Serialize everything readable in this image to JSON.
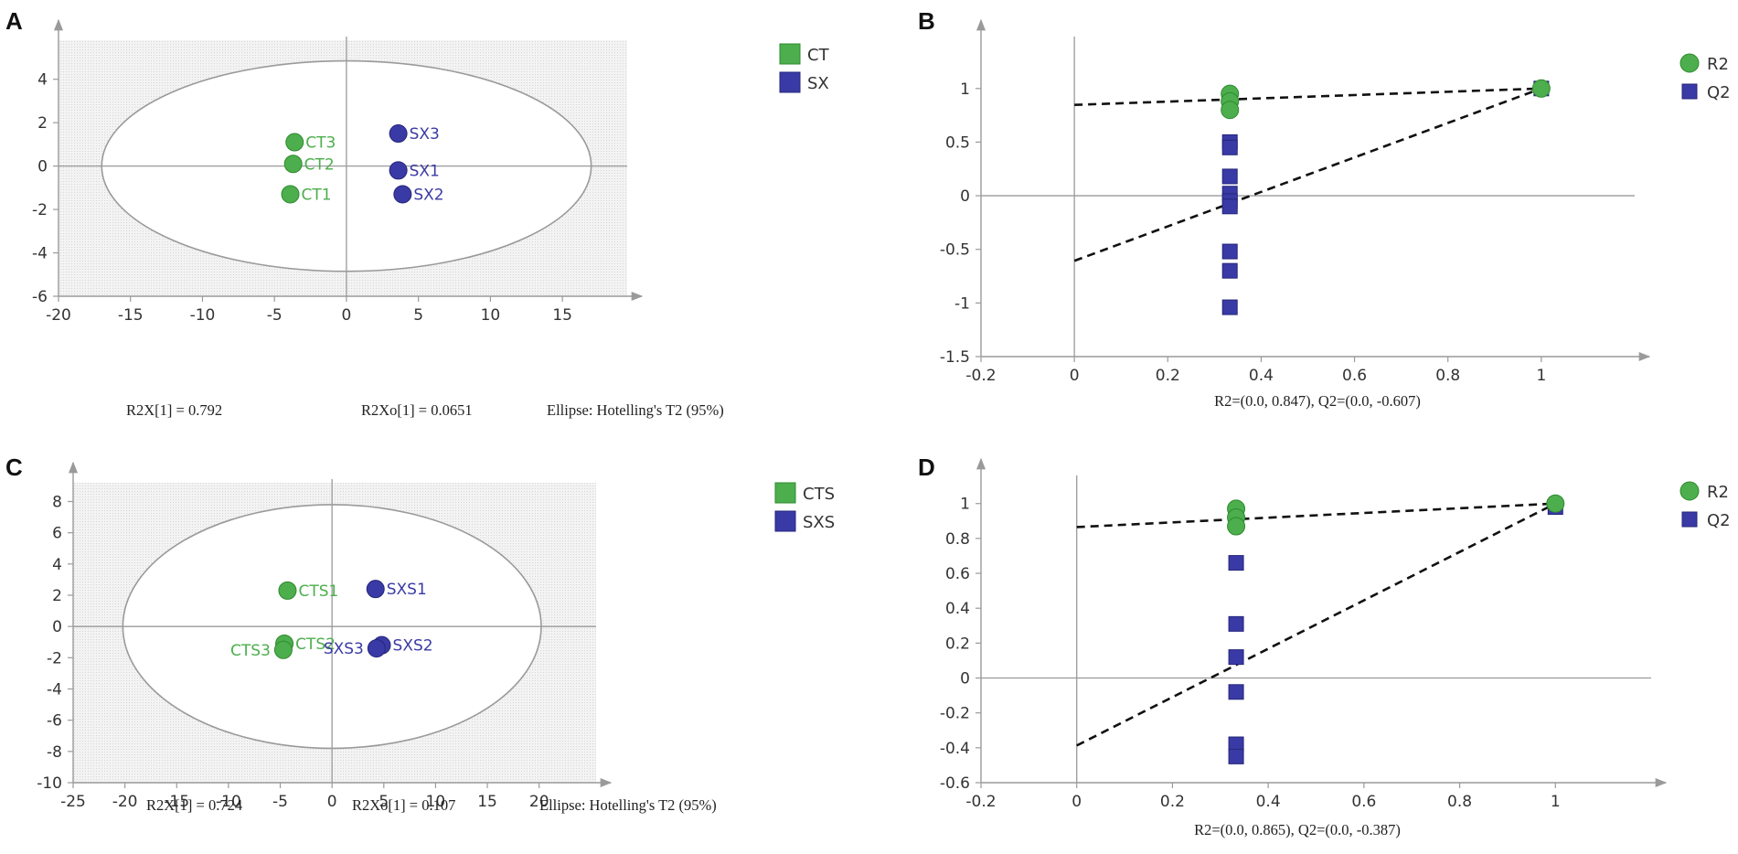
{
  "colors": {
    "green": "#4cae4c",
    "green_stroke": "#2f8a2f",
    "blue": "#3a3aa6",
    "blue_stroke": "#25257a",
    "plot_bg": "#efefef",
    "axis": "#9a9a9a"
  },
  "chart_data": [
    {
      "panel": "A",
      "type": "scatter",
      "xlim": [
        -20,
        19.5
      ],
      "ylim": [
        -6,
        5.8
      ],
      "xticks": [
        -20,
        -15,
        -10,
        -5,
        0,
        5,
        10,
        15
      ],
      "yticks": [
        -6,
        -4,
        -2,
        0,
        2,
        4
      ],
      "shaded": true,
      "ellipse": {
        "cx": 0,
        "cy": 0,
        "rx": 17,
        "ry": 4.85
      },
      "points": [
        {
          "label": "CT3",
          "x": -3.6,
          "y": 1.1,
          "group": "CT"
        },
        {
          "label": "CT2",
          "x": -3.7,
          "y": 0.1,
          "group": "CT"
        },
        {
          "label": "CT1",
          "x": -3.9,
          "y": -1.3,
          "group": "CT"
        },
        {
          "label": "SX3",
          "x": 3.6,
          "y": 1.5,
          "group": "SX"
        },
        {
          "label": "SX1",
          "x": 3.6,
          "y": -0.2,
          "group": "SX"
        },
        {
          "label": "SX2",
          "x": 3.9,
          "y": -1.3,
          "group": "SX"
        }
      ],
      "legend": [
        {
          "name": "CT",
          "group": "CT"
        },
        {
          "name": "SX",
          "group": "SX"
        }
      ],
      "caption": [
        "R2X[1] = 0.792",
        "R2Xo[1] = 0.0651",
        "Ellipse: Hotelling's T2 (95%)"
      ]
    },
    {
      "panel": "B",
      "type": "scatter",
      "xlim": [
        -0.2,
        1.2
      ],
      "ylim": [
        -1.5,
        1.45
      ],
      "xticks": [
        -0.2,
        0,
        0.2,
        0.4,
        0.6,
        0.8,
        1
      ],
      "yticks": [
        -1.5,
        -1,
        -0.5,
        0,
        0.5,
        1
      ],
      "shaded": false,
      "r2_points": [
        {
          "x": 0.333,
          "y": 0.95
        },
        {
          "x": 0.333,
          "y": 0.88
        },
        {
          "x": 0.333,
          "y": 0.8
        },
        {
          "x": 1,
          "y": 1
        }
      ],
      "q2_points": [
        {
          "x": 0.333,
          "y": 0.5
        },
        {
          "x": 0.333,
          "y": 0.45
        },
        {
          "x": 0.333,
          "y": 0.18
        },
        {
          "x": 0.333,
          "y": 0.02
        },
        {
          "x": 0.333,
          "y": -0.05
        },
        {
          "x": 0.333,
          "y": -0.1
        },
        {
          "x": 0.333,
          "y": -0.52
        },
        {
          "x": 0.333,
          "y": -0.7
        },
        {
          "x": 0.333,
          "y": -1.04
        },
        {
          "x": 1,
          "y": 1
        }
      ],
      "r2_line": {
        "intercept": 0.847,
        "end": 1
      },
      "q2_line": {
        "intercept": -0.607,
        "end": 1
      },
      "legend": [
        {
          "name": "R2",
          "group": "R2"
        },
        {
          "name": "Q2",
          "group": "Q2"
        }
      ],
      "caption": [
        "R2=(0.0, 0.847), Q2=(0.0, -0.607)"
      ]
    },
    {
      "panel": "C",
      "type": "scatter",
      "xlim": [
        -25,
        25.5
      ],
      "ylim": [
        -10,
        9.2
      ],
      "xticks": [
        -25,
        -20,
        -15,
        -10,
        -5,
        0,
        5,
        10,
        15,
        20
      ],
      "yticks": [
        -10,
        -8,
        -6,
        -4,
        -2,
        0,
        2,
        4,
        6,
        8
      ],
      "shaded": true,
      "ellipse": {
        "cx": 0,
        "cy": 0,
        "rx": 20.2,
        "ry": 7.8
      },
      "points": [
        {
          "label": "CTS1",
          "x": -4.3,
          "y": 2.3,
          "group": "CT"
        },
        {
          "label": "CTS2",
          "x": -4.6,
          "y": -1.1,
          "group": "CT"
        },
        {
          "label": "CTS3",
          "x": -4.7,
          "y": -1.5,
          "group": "CT"
        },
        {
          "label": "SXS1",
          "x": 4.2,
          "y": 2.4,
          "group": "SX"
        },
        {
          "label": "SXS2",
          "x": 4.8,
          "y": -1.2,
          "group": "SX"
        },
        {
          "label": "SXS3",
          "x": 4.3,
          "y": -1.4,
          "group": "SX"
        }
      ],
      "legend": [
        {
          "name": "CTS",
          "group": "CT"
        },
        {
          "name": "SXS",
          "group": "SX"
        }
      ],
      "caption": [
        "R2X[1] = 0.724",
        "R2Xo[1] = 0.107",
        "Ellipse: Hotelling's T2 (95%)"
      ]
    },
    {
      "panel": "D",
      "type": "scatter",
      "xlim": [
        -0.2,
        1.2
      ],
      "ylim": [
        -0.6,
        1.14
      ],
      "xticks": [
        -0.2,
        0,
        0.2,
        0.4,
        0.6,
        0.8,
        1
      ],
      "yticks": [
        -0.6,
        -0.4,
        -0.2,
        0,
        0.2,
        0.4,
        0.6,
        0.8,
        1
      ],
      "shaded": false,
      "r2_points": [
        {
          "x": 0.333,
          "y": 0.97
        },
        {
          "x": 0.333,
          "y": 0.92
        },
        {
          "x": 0.333,
          "y": 0.87
        },
        {
          "x": 1,
          "y": 1
        }
      ],
      "q2_points": [
        {
          "x": 0.333,
          "y": 0.66
        },
        {
          "x": 0.333,
          "y": 0.31
        },
        {
          "x": 0.333,
          "y": 0.12
        },
        {
          "x": 0.333,
          "y": -0.08
        },
        {
          "x": 0.333,
          "y": -0.38
        },
        {
          "x": 0.333,
          "y": -0.45
        },
        {
          "x": 1,
          "y": 0.98
        }
      ],
      "r2_line": {
        "intercept": 0.865,
        "end": 1
      },
      "q2_line": {
        "intercept": -0.387,
        "end": 1
      },
      "legend": [
        {
          "name": "R2",
          "group": "R2"
        },
        {
          "name": "Q2",
          "group": "Q2"
        }
      ],
      "caption": [
        "R2=(0.0, 0.865), Q2=(0.0, -0.387)"
      ]
    }
  ]
}
